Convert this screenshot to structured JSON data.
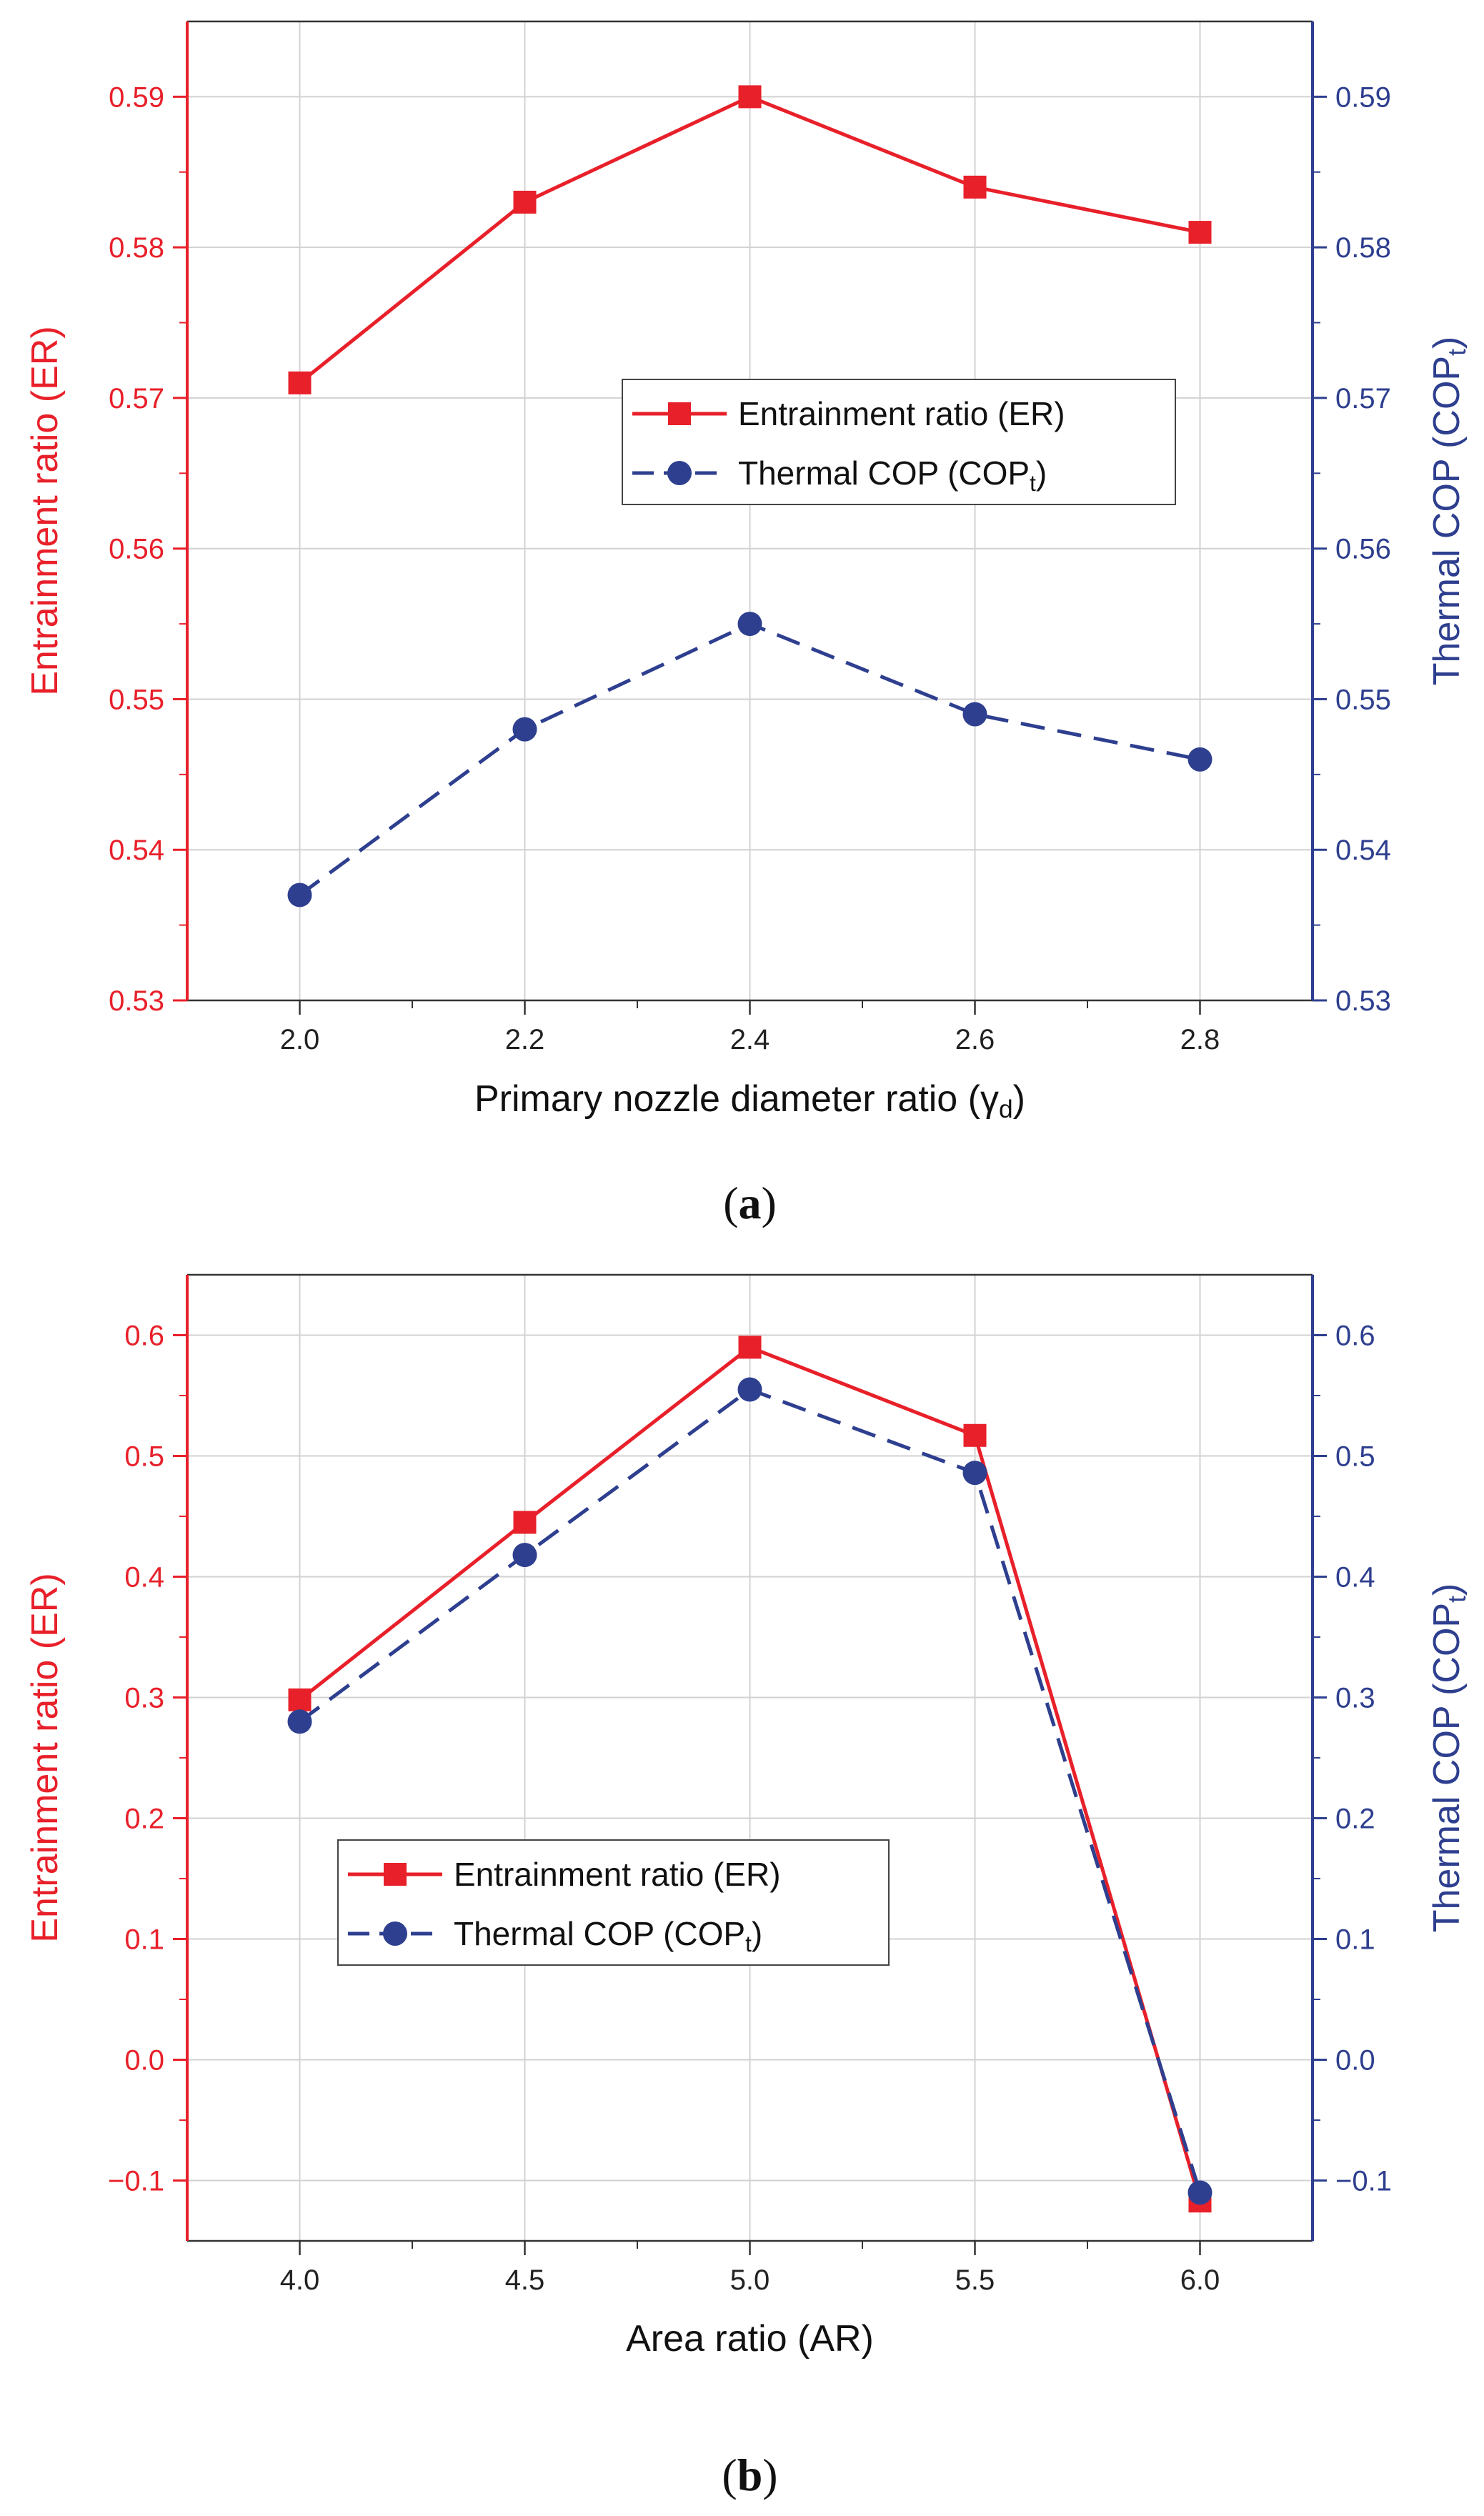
{
  "colors": {
    "er": "#e8202a",
    "cop": "#2e3f8f",
    "grid": "#d2d2d2",
    "axis_text": "#222222"
  },
  "chart_data": [
    {
      "id": "a",
      "type": "line",
      "panel_label": "a",
      "xlabel": "Primary nozzle diameter ratio (γ",
      "xlabel_sub": "d",
      "xlabel_end": ")",
      "ylabel_left": "Entrainment ratio (ER)",
      "ylabel_right": "Thermal COP (COP",
      "ylabel_right_sub": "t",
      "ylabel_right_end": ")",
      "xlim": [
        1.9,
        2.9
      ],
      "ylim_left": [
        0.53,
        0.595
      ],
      "ylim_right": [
        0.53,
        0.595
      ],
      "x": [
        2.0,
        2.2,
        2.4,
        2.6,
        2.8
      ],
      "xticks": [
        2.0,
        2.2,
        2.4,
        2.6,
        2.8
      ],
      "xtick_labels": [
        "2.0",
        "2.2",
        "2.4",
        "2.6",
        "2.8"
      ],
      "yticks": [
        0.53,
        0.54,
        0.55,
        0.56,
        0.57,
        0.58,
        0.59
      ],
      "ytick_labels": [
        "0.53",
        "0.54",
        "0.55",
        "0.56",
        "0.57",
        "0.58",
        "0.59"
      ],
      "legend_position": "center-right",
      "series": [
        {
          "name": "Entrainment ratio (ER)",
          "axis": "left",
          "marker": "square",
          "dash": false,
          "values": [
            0.571,
            0.583,
            0.59,
            0.584,
            0.581
          ]
        },
        {
          "name": "Thermal COP (COP",
          "name_sub": "t",
          "name_end": ")",
          "axis": "right",
          "marker": "circle",
          "dash": true,
          "values": [
            0.537,
            0.548,
            0.555,
            0.549,
            0.546
          ]
        }
      ]
    },
    {
      "id": "b",
      "type": "line",
      "panel_label": "b",
      "xlabel": "Area ratio (AR)",
      "xlabel_sub": "",
      "xlabel_end": "",
      "ylabel_left": "Entrainment ratio (ER)",
      "ylabel_right": "Thermal COP (COP",
      "ylabel_right_sub": "t",
      "ylabel_right_end": ")",
      "xlim": [
        3.75,
        6.25
      ],
      "ylim_left": [
        -0.15,
        0.65
      ],
      "ylim_right": [
        -0.15,
        0.65
      ],
      "x": [
        4.0,
        4.5,
        5.0,
        5.5,
        6.0
      ],
      "xticks": [
        4.0,
        4.5,
        5.0,
        5.5,
        6.0
      ],
      "xtick_labels": [
        "4.0",
        "4.5",
        "5.0",
        "5.5",
        "6.0"
      ],
      "yticks": [
        -0.1,
        0.0,
        0.1,
        0.2,
        0.3,
        0.4,
        0.5,
        0.6
      ],
      "ytick_labels": [
        "−0.1",
        "0.0",
        "0.1",
        "0.2",
        "0.3",
        "0.4",
        "0.5",
        "0.6"
      ],
      "legend_position": "center-left",
      "series": [
        {
          "name": "Entrainment ratio (ER)",
          "axis": "left",
          "marker": "square",
          "dash": false,
          "values": [
            0.298,
            0.445,
            0.59,
            0.517,
            -0.117
          ]
        },
        {
          "name": "Thermal COP (COP",
          "name_sub": "t",
          "name_end": ")",
          "axis": "right",
          "marker": "circle",
          "dash": true,
          "values": [
            0.28,
            0.418,
            0.555,
            0.486,
            -0.11
          ]
        }
      ]
    }
  ]
}
